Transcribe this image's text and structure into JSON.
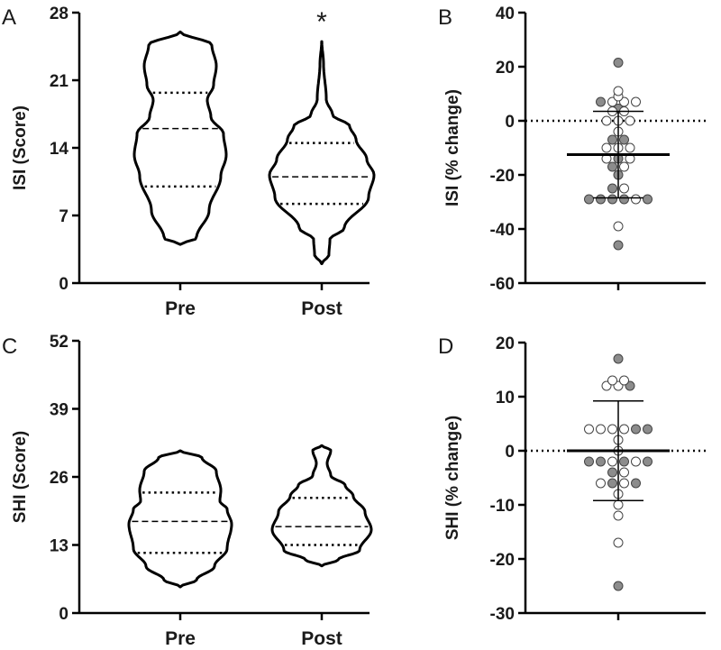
{
  "chart_data": [
    {
      "panel": "A",
      "type": "violin",
      "ylabel": "ISI (Score)",
      "ylim": [
        0,
        28
      ],
      "yticks": [
        0,
        7,
        14,
        21,
        28
      ],
      "categories": [
        "Pre",
        "Post"
      ],
      "annotation": "*",
      "annotation_category": "Post",
      "series": [
        {
          "name": "Pre",
          "min": 4,
          "max": 26,
          "median": 16,
          "q1": 10,
          "q3": 19.7
        },
        {
          "name": "Post",
          "min": 2,
          "max": 25,
          "median": 11,
          "q1": 8.2,
          "q3": 14.5
        }
      ]
    },
    {
      "panel": "B",
      "type": "scatter",
      "ylabel": "ISI (% change)",
      "ylim": [
        -60,
        40
      ],
      "yticks": [
        -60,
        -40,
        -20,
        0,
        20,
        40
      ],
      "reference_line": 0,
      "mean": -12.5,
      "sd": 16,
      "points": [
        {
          "y": 21.5,
          "filled": true
        },
        {
          "y": 11,
          "filled": false
        },
        {
          "y": 9,
          "filled": false
        },
        {
          "y": 7,
          "filled": true
        },
        {
          "y": 7,
          "filled": false
        },
        {
          "y": 7,
          "filled": false
        },
        {
          "y": 7,
          "filled": false
        },
        {
          "y": 4.5,
          "filled": true
        },
        {
          "y": 3.5,
          "filled": false
        },
        {
          "y": 3.5,
          "filled": false
        },
        {
          "y": 0,
          "filled": false
        },
        {
          "y": 0,
          "filled": false
        },
        {
          "y": 0,
          "filled": false
        },
        {
          "y": -4,
          "filled": false
        },
        {
          "y": -7,
          "filled": true
        },
        {
          "y": -7,
          "filled": true
        },
        {
          "y": -10,
          "filled": false
        },
        {
          "y": -10,
          "filled": false
        },
        {
          "y": -10,
          "filled": false
        },
        {
          "y": -14,
          "filled": false
        },
        {
          "y": -14,
          "filled": true
        },
        {
          "y": -14,
          "filled": false
        },
        {
          "y": -17,
          "filled": true
        },
        {
          "y": -17,
          "filled": false
        },
        {
          "y": -20,
          "filled": true
        },
        {
          "y": -25,
          "filled": true
        },
        {
          "y": -25,
          "filled": false
        },
        {
          "y": -29,
          "filled": true
        },
        {
          "y": -29,
          "filled": true
        },
        {
          "y": -29,
          "filled": true
        },
        {
          "y": -29,
          "filled": true
        },
        {
          "y": -29,
          "filled": false
        },
        {
          "y": -29,
          "filled": true
        },
        {
          "y": -39,
          "filled": false
        },
        {
          "y": -46,
          "filled": true
        }
      ]
    },
    {
      "panel": "C",
      "type": "violin",
      "ylabel": "SHI (Score)",
      "ylim": [
        0,
        52
      ],
      "yticks": [
        0,
        13,
        26,
        39,
        52
      ],
      "categories": [
        "Pre",
        "Post"
      ],
      "series": [
        {
          "name": "Pre",
          "min": 5,
          "max": 31,
          "median": 17.5,
          "q1": 11.5,
          "q3": 23
        },
        {
          "name": "Post",
          "min": 9,
          "max": 32,
          "median": 16.5,
          "q1": 13,
          "q3": 22
        }
      ]
    },
    {
      "panel": "D",
      "type": "scatter",
      "ylabel": "SHI (% change)",
      "ylim": [
        -30,
        20
      ],
      "yticks": [
        -30,
        -20,
        -10,
        0,
        10,
        20
      ],
      "reference_line": 0,
      "mean": 0,
      "sd": 9.2,
      "points": [
        {
          "y": 17,
          "filled": true
        },
        {
          "y": 13,
          "filled": false
        },
        {
          "y": 13,
          "filled": false
        },
        {
          "y": 12,
          "filled": false
        },
        {
          "y": 12,
          "filled": false
        },
        {
          "y": 12,
          "filled": true
        },
        {
          "y": 4,
          "filled": false
        },
        {
          "y": 4,
          "filled": false
        },
        {
          "y": 4,
          "filled": false
        },
        {
          "y": 4,
          "filled": false
        },
        {
          "y": 4,
          "filled": true
        },
        {
          "y": 4,
          "filled": true
        },
        {
          "y": 2,
          "filled": false
        },
        {
          "y": 0,
          "filled": false
        },
        {
          "y": -2,
          "filled": true
        },
        {
          "y": -2,
          "filled": true
        },
        {
          "y": -2,
          "filled": false
        },
        {
          "y": -2,
          "filled": true
        },
        {
          "y": -2,
          "filled": false
        },
        {
          "y": -2,
          "filled": true
        },
        {
          "y": -4,
          "filled": true
        },
        {
          "y": -4,
          "filled": false
        },
        {
          "y": -6,
          "filled": false
        },
        {
          "y": -6,
          "filled": true
        },
        {
          "y": -6,
          "filled": false
        },
        {
          "y": -6,
          "filled": true
        },
        {
          "y": -8,
          "filled": false
        },
        {
          "y": -10,
          "filled": false
        },
        {
          "y": -12,
          "filled": false
        },
        {
          "y": -17,
          "filled": false
        },
        {
          "y": -25,
          "filled": true
        }
      ]
    }
  ]
}
